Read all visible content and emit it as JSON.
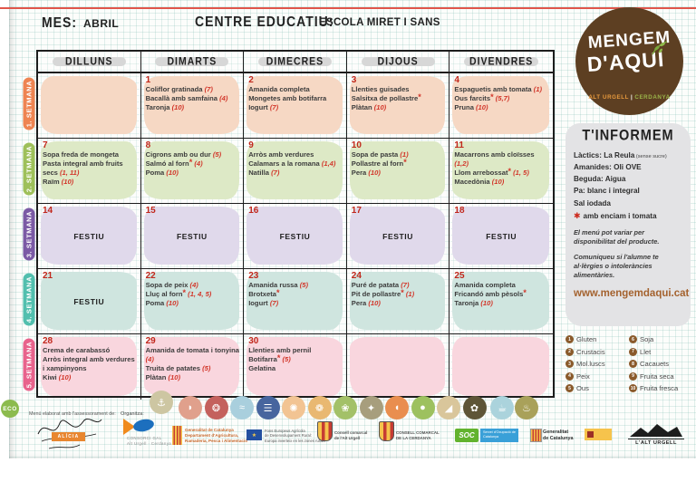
{
  "header": {
    "mes_label": "MES:",
    "mes_value": "ABRIL",
    "centre_label": "CENTRE EDUCATIU:",
    "centre_value": "ESCOLA MIRET I SANS"
  },
  "logo": {
    "line1": "MENGEM",
    "line2": "D'AQUI",
    "region1": "ALT URGELL",
    "divider": "|",
    "region2": "CERDANYA",
    "circle_color": "#5d3f22"
  },
  "calendar": {
    "day_headers": [
      "DILLUNS",
      "DIMARTS",
      "DIMECRES",
      "DIJOUS",
      "DIVENDRES"
    ],
    "festiu_label": "FESTIU",
    "weeks": [
      {
        "label": "1. SETMANA",
        "label_color": "#ee8452",
        "cell_color": "#f6d8c4",
        "cells": [
          {
            "type": "empty"
          },
          {
            "day": "1",
            "lines": [
              "Coliflor gratinada (7)",
              "Bacallà amb samfaina (4)",
              "Taronja (10)"
            ]
          },
          {
            "day": "2",
            "lines": [
              "Amanida completa",
              "Mongetes amb botifarra",
              "Iogurt (7)"
            ]
          },
          {
            "day": "3",
            "lines": [
              "Llenties guisades",
              "Salsitxa de pollastre*",
              "Plàtan (10)"
            ]
          },
          {
            "day": "4",
            "lines": [
              "Espaguetis amb tomata (1)",
              "Ous farcits* (5,7)",
              "Pruna (10)"
            ]
          }
        ]
      },
      {
        "label": "2. SETMANA",
        "label_color": "#9ec05a",
        "cell_color": "#dde9c6",
        "cells": [
          {
            "day": "7",
            "lines": [
              "Sopa freda de mongeta",
              "Pasta integral amb fruits secs (1, 11)",
              "Raïm (10)"
            ]
          },
          {
            "day": "8",
            "lines": [
              "Cigrons amb ou dur (5)",
              "Salmó al forn* (4)",
              "Poma (10)"
            ]
          },
          {
            "day": "9",
            "lines": [
              "Arròs amb verdures",
              "Calamars a la romana (1,4)",
              "Natilla (7)"
            ]
          },
          {
            "day": "10",
            "lines": [
              "Sopa de pasta (1)",
              "Pollastre al forn*",
              "Pera (10)"
            ]
          },
          {
            "day": "11",
            "lines": [
              "Macarrons amb cloïsses (1,2)",
              "Llom arrebossat* (1, 5)",
              "Macedònia (10)"
            ]
          }
        ]
      },
      {
        "label": "3. SETMANA",
        "label_color": "#7b5aa5",
        "cell_color": "#e0d9eb",
        "cells": [
          {
            "day": "14",
            "type": "festiu"
          },
          {
            "day": "15",
            "type": "festiu"
          },
          {
            "day": "16",
            "type": "festiu"
          },
          {
            "day": "17",
            "type": "festiu"
          },
          {
            "day": "18",
            "type": "festiu"
          }
        ]
      },
      {
        "label": "4. SETMANA",
        "label_color": "#52bfae",
        "cell_color": "#cfe5df",
        "cells": [
          {
            "day": "21",
            "type": "festiu"
          },
          {
            "day": "22",
            "lines": [
              "Sopa de peix (4)",
              "Lluç al forn* (1, 4, 5)",
              "Poma (10)"
            ]
          },
          {
            "day": "23",
            "lines": [
              "Amanida russa (5)",
              "Brotxeta*",
              "Iogurt (7)"
            ]
          },
          {
            "day": "24",
            "lines": [
              "Puré de patata (7)",
              "Pit de pollastre* (1)",
              "Pera (10)"
            ]
          },
          {
            "day": "25",
            "lines": [
              "Amanida completa",
              "Fricandó amb pèsols*",
              "Taronja (10)"
            ]
          }
        ]
      },
      {
        "label": "5. SETMANA",
        "label_color": "#e8638c",
        "cell_color": "#f9d6de",
        "cells": [
          {
            "day": "28",
            "lines": [
              "Crema de carabassó",
              "Arròs integral amb verdures i xampinyons",
              "Kiwi (10)"
            ]
          },
          {
            "day": "29",
            "lines": [
              "Amanida de tomata i tonyina (4)",
              "Truita de patates (5)",
              "Plàtan (10)"
            ]
          },
          {
            "day": "30",
            "lines": [
              "Llenties amb pernil",
              "Botifarra* (5)",
              "Gelatina"
            ]
          },
          {
            "type": "empty"
          },
          {
            "type": "empty"
          }
        ]
      }
    ]
  },
  "info_panel": {
    "title": "T'INFORMEM",
    "lines": [
      {
        "text": "Làctics: La Reula",
        "small": "(sense sucre)"
      },
      {
        "text": "Amanides: Oli OVE"
      },
      {
        "text": "Beguda: Aigua"
      },
      {
        "text": "Pa: blanc i integral"
      },
      {
        "text": "Sal iodada"
      },
      {
        "text": "amb enciam i tomata",
        "star": true
      }
    ],
    "notes": [
      "El menú pot variar per disponibilitat del producte.",
      "Comuniqueu si l'alumne te al·lèrgies o intoleràncies alimentàries."
    ],
    "website": "www.mengemdaqui.cat"
  },
  "allergen_legend": {
    "circle_color": "#8a5a2b",
    "items": [
      {
        "num": "1",
        "label": "Gluten"
      },
      {
        "num": "2",
        "label": "Crustacis"
      },
      {
        "num": "3",
        "label": "Mol.luscs"
      },
      {
        "num": "4",
        "label": "Peix"
      },
      {
        "num": "5",
        "label": "Ous"
      },
      {
        "num": "6",
        "label": "Soja"
      },
      {
        "num": "7",
        "label": "Llet"
      },
      {
        "num": "8",
        "label": "Cacauets"
      },
      {
        "num": "9",
        "label": "Fruita seca"
      },
      {
        "num": "10",
        "label": "Fruita fresca"
      }
    ]
  },
  "footer": {
    "eco_label": "ECO",
    "assessment_label": "Menú elaborat amb l'assessorament de:",
    "alicia_label": "ALÍCIA",
    "organitza_label": "Organitza:",
    "gal": {
      "line1": "CONSORCI GAL",
      "line2": "Alt Urgell · Cerdanya"
    },
    "icons": [
      {
        "name": "sailboat-icon",
        "color": "#cdc6a2",
        "glyph": "⚓"
      },
      {
        "name": "meat-icon",
        "color": "#e0a08c",
        "glyph": "◗"
      },
      {
        "name": "ham-icon",
        "color": "#c4615d",
        "glyph": "❂"
      },
      {
        "name": "fish-icon",
        "color": "#a9cfdd",
        "glyph": "≈"
      },
      {
        "name": "sardines-icon",
        "color": "#47659e",
        "glyph": "☰"
      },
      {
        "name": "pasta-icon",
        "color": "#f2c493",
        "glyph": "✺"
      },
      {
        "name": "wheat-icon",
        "color": "#e9b871",
        "glyph": "❁"
      },
      {
        "name": "vegetables-icon",
        "color": "#a3c168",
        "glyph": "❀"
      },
      {
        "name": "grain-icon",
        "color": "#a79e7d",
        "glyph": "✦"
      },
      {
        "name": "poultry-icon",
        "color": "#e98e4f",
        "glyph": "◖"
      },
      {
        "name": "apple-icon",
        "color": "#9dc15f",
        "glyph": "●"
      },
      {
        "name": "cheese-icon",
        "color": "#d9c69b",
        "glyph": "◢"
      },
      {
        "name": "legume-icon",
        "color": "#5e5537",
        "glyph": "✿"
      },
      {
        "name": "milk-cup-icon",
        "color": "#abd3dc",
        "glyph": "☕"
      },
      {
        "name": "chef-icon",
        "color": "#a9a15a",
        "glyph": "♨"
      }
    ],
    "logos": [
      {
        "lines": [
          "Generalitat de Catalunya",
          "Departament d'Agricultura,",
          "Ramaderia, Pesca i Alimentació"
        ]
      },
      {
        "lines": [
          "Fons Europeus Agrícola",
          "de Desenvolupament Rural:",
          "Europa inverteix en les zones rurals"
        ]
      },
      {
        "lines": [
          "Consell comarcal",
          "de l'Alt Urgell"
        ]
      },
      {
        "lines": [
          "CONSELL COMARCAL",
          "DE LA CERDANYA"
        ]
      },
      {
        "text": "SOC",
        "sub": "Servei d'Ocupació de Catalunya"
      },
      {
        "lines": [
          "Generalitat",
          "de Catalunya"
        ]
      },
      {
        "text": "L'ALT URGELL"
      }
    ]
  }
}
